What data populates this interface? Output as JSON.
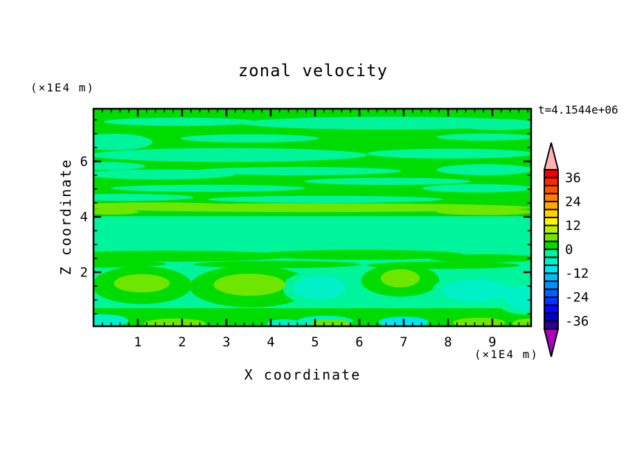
{
  "title": "zonal velocity",
  "annotations": {
    "time": "t=4.1544e+06"
  },
  "axes": {
    "x": {
      "label": "X coordinate",
      "unit": "(×1E4 m)",
      "min": 0,
      "max": 9.88,
      "major_ticks": [
        1,
        2,
        3,
        4,
        5,
        6,
        7,
        8,
        9
      ],
      "minor_step": 0.2
    },
    "z": {
      "label": "Z coordinate",
      "unit": "(×1E4 m)",
      "min": 0.05,
      "max": 7.9,
      "major_ticks": [
        2,
        4,
        6
      ],
      "minor_step": 0.5
    }
  },
  "colorbar": {
    "tick_labels": [
      36,
      24,
      12,
      0,
      -12,
      -24,
      -36
    ],
    "level_min": -40,
    "level_max": 40,
    "interval": 4,
    "box_colors_top_to_bottom": [
      "#f00000",
      "#ff2600",
      "#ff5200",
      "#ff7e00",
      "#ffaa00",
      "#ffd300",
      "#fff900",
      "#b9f000",
      "#6fe600",
      "#00db00",
      "#00f49c",
      "#00f0c8",
      "#00e4f0",
      "#00bdf2",
      "#0090ff",
      "#0061ff",
      "#0033ff",
      "#0008ff",
      "#0000c4",
      "#2e0096"
    ],
    "over_arrow_color": "#ffb3b3",
    "under_arrow_color": "#aa00bb"
  },
  "chart_data": {
    "type": "filled_contour",
    "title": "zonal velocity",
    "xlabel": "X coordinate (×1E4 m)",
    "ylabel": "Z coordinate (×1E4 m)",
    "time_annotation": "t=4.1544e+06",
    "x_range": [
      0,
      9.88
    ],
    "z_range": [
      0.05,
      7.9
    ],
    "contour_levels": [
      -40,
      -36,
      -32,
      -28,
      -24,
      -20,
      -16,
      -12,
      -8,
      -4,
      0,
      4,
      8,
      12,
      16,
      20,
      24,
      28,
      32,
      36,
      40
    ],
    "legend_position": "right-colorbar",
    "grid": false,
    "field_features": [
      {
        "shape": "rect",
        "x": [
          0,
          9.88
        ],
        "z": [
          0.05,
          7.9
        ],
        "band": [
          -4,
          0
        ]
      },
      {
        "shape": "rect",
        "x": [
          0,
          9.88
        ],
        "z": [
          4.02,
          7.9
        ],
        "band": [
          0,
          4
        ]
      },
      {
        "shape": "ellipse",
        "cx": 6.64,
        "cz": 7.38,
        "rx": 3.28,
        "rz": 0.23,
        "band": [
          -4,
          0
        ]
      },
      {
        "shape": "ellipse",
        "cx": 1.95,
        "cz": 7.43,
        "rx": 1.72,
        "rz": 0.15,
        "band": [
          -4,
          0
        ]
      },
      {
        "shape": "ellipse",
        "cx": 9.14,
        "cz": 7.33,
        "rx": 0.94,
        "rz": 0.2,
        "band": [
          -4,
          0
        ]
      },
      {
        "shape": "ellipse",
        "cx": 0.47,
        "cz": 6.7,
        "rx": 0.86,
        "rz": 0.3,
        "band": [
          -4,
          0
        ]
      },
      {
        "shape": "ellipse",
        "cx": 3.52,
        "cz": 6.83,
        "rx": 1.56,
        "rz": 0.15,
        "band": [
          -4,
          0
        ]
      },
      {
        "shape": "ellipse",
        "cx": 8.83,
        "cz": 6.88,
        "rx": 1.09,
        "rz": 0.13,
        "band": [
          -4,
          0
        ]
      },
      {
        "shape": "ellipse",
        "cx": 3.05,
        "cz": 6.23,
        "rx": 3.13,
        "rz": 0.25,
        "band": [
          -4,
          0
        ]
      },
      {
        "shape": "ellipse",
        "cx": 8.05,
        "cz": 6.28,
        "rx": 1.88,
        "rz": 0.18,
        "band": [
          -4,
          0
        ]
      },
      {
        "shape": "ellipse",
        "cx": 0.23,
        "cz": 5.83,
        "rx": 0.94,
        "rz": 0.15,
        "band": [
          -4,
          0
        ]
      },
      {
        "shape": "ellipse",
        "cx": 4.61,
        "cz": 5.65,
        "rx": 2.34,
        "rz": 0.15,
        "band": [
          -4,
          0
        ]
      },
      {
        "shape": "ellipse",
        "cx": 8.83,
        "cz": 5.7,
        "rx": 1.09,
        "rz": 0.2,
        "band": [
          -4,
          0
        ]
      },
      {
        "shape": "ellipse",
        "cx": 1.48,
        "cz": 5.53,
        "rx": 1.72,
        "rz": 0.18,
        "band": [
          -4,
          0
        ]
      },
      {
        "shape": "ellipse",
        "cx": 6.64,
        "cz": 5.28,
        "rx": 1.88,
        "rz": 0.13,
        "band": [
          -4,
          0
        ]
      },
      {
        "shape": "ellipse",
        "cx": 2.58,
        "cz": 5.03,
        "rx": 2.19,
        "rz": 0.13,
        "band": [
          -4,
          0
        ]
      },
      {
        "shape": "ellipse",
        "cx": 8.67,
        "cz": 5.03,
        "rx": 1.25,
        "rz": 0.15,
        "band": [
          -4,
          0
        ]
      },
      {
        "shape": "ellipse",
        "cx": 0.7,
        "cz": 4.7,
        "rx": 1.56,
        "rz": 0.13,
        "band": [
          -4,
          0
        ]
      },
      {
        "shape": "ellipse",
        "cx": 5.23,
        "cz": 4.63,
        "rx": 2.66,
        "rz": 0.13,
        "band": [
          -4,
          0
        ]
      },
      {
        "shape": "ellipse",
        "cx": 4.92,
        "cz": 4.33,
        "rx": 5.0,
        "rz": 0.16,
        "band": [
          4,
          8
        ]
      },
      {
        "shape": "ellipse",
        "cx": 1.33,
        "cz": 4.4,
        "rx": 1.88,
        "rz": 0.12,
        "band": [
          4,
          8
        ]
      },
      {
        "shape": "ellipse",
        "cx": 8.83,
        "cz": 4.18,
        "rx": 1.09,
        "rz": 0.12,
        "band": [
          4,
          8
        ]
      },
      {
        "shape": "ellipse",
        "cx": 0.39,
        "cz": 4.18,
        "rx": 0.63,
        "rz": 0.1,
        "band": [
          4,
          8
        ]
      },
      {
        "shape": "ellipse",
        "cx": 1.64,
        "cz": 2.58,
        "rx": 2.81,
        "rz": 0.2,
        "band": [
          0,
          4
        ]
      },
      {
        "shape": "ellipse",
        "cx": 6.02,
        "cz": 2.63,
        "rx": 2.34,
        "rz": 0.18,
        "band": [
          0,
          4
        ]
      },
      {
        "shape": "ellipse",
        "cx": 8.83,
        "cz": 2.5,
        "rx": 1.25,
        "rz": 0.15,
        "band": [
          0,
          4
        ]
      },
      {
        "shape": "ellipse",
        "cx": 0.23,
        "cz": 2.3,
        "rx": 1.41,
        "rz": 0.13,
        "band": [
          0,
          4
        ]
      },
      {
        "shape": "ellipse",
        "cx": 4.14,
        "cz": 2.28,
        "rx": 1.88,
        "rz": 0.13,
        "band": [
          0,
          4
        ]
      },
      {
        "shape": "ellipse",
        "cx": 7.89,
        "cz": 2.25,
        "rx": 1.72,
        "rz": 0.13,
        "band": [
          0,
          4
        ]
      },
      {
        "shape": "ellipse",
        "cx": 1.09,
        "cz": 1.53,
        "rx": 1.13,
        "rz": 0.68,
        "band": [
          0,
          4
        ]
      },
      {
        "shape": "ellipse",
        "cx": 3.55,
        "cz": 1.48,
        "rx": 1.38,
        "rz": 0.75,
        "band": [
          0,
          4
        ]
      },
      {
        "shape": "ellipse",
        "cx": 6.92,
        "cz": 1.7,
        "rx": 0.88,
        "rz": 0.58,
        "band": [
          0,
          4
        ]
      },
      {
        "shape": "rect",
        "x": [
          0,
          9.88
        ],
        "z": [
          0.05,
          0.7
        ],
        "band": [
          0,
          4
        ]
      },
      {
        "shape": "ellipse",
        "cx": 5.11,
        "cz": 1.43,
        "rx": 0.84,
        "rz": 0.63,
        "band": [
          -4,
          0
        ]
      },
      {
        "shape": "ellipse",
        "cx": 8.64,
        "cz": 1.33,
        "rx": 1.0,
        "rz": 0.58,
        "band": [
          -4,
          0
        ]
      },
      {
        "shape": "ellipse",
        "cx": 9.72,
        "cz": 1.1,
        "rx": 0.69,
        "rz": 0.63,
        "band": [
          -4,
          0
        ]
      },
      {
        "shape": "ellipse",
        "cx": 5.11,
        "cz": 1.43,
        "rx": 0.59,
        "rz": 0.43,
        "band": [
          -8,
          -4
        ]
      },
      {
        "shape": "ellipse",
        "cx": 8.64,
        "cz": 1.33,
        "rx": 0.77,
        "rz": 0.4,
        "band": [
          -8,
          -4
        ]
      },
      {
        "shape": "ellipse",
        "cx": 9.72,
        "cz": 1.1,
        "rx": 0.45,
        "rz": 0.43,
        "band": [
          -8,
          -4
        ]
      },
      {
        "shape": "ellipse",
        "cx": 0.2,
        "cz": 0.25,
        "rx": 0.59,
        "rz": 0.23,
        "band": [
          -8,
          -4
        ]
      },
      {
        "shape": "ellipse",
        "cx": 4.3,
        "cz": 0.15,
        "rx": 0.39,
        "rz": 0.15,
        "band": [
          -8,
          -4
        ]
      },
      {
        "shape": "ellipse",
        "cx": 5.23,
        "cz": 0.23,
        "rx": 0.63,
        "rz": 0.2,
        "band": [
          -8,
          -4
        ]
      },
      {
        "shape": "ellipse",
        "cx": 7.0,
        "cz": 0.2,
        "rx": 0.56,
        "rz": 0.2,
        "band": [
          -12,
          -8
        ]
      },
      {
        "shape": "ellipse",
        "cx": 1.09,
        "cz": 1.6,
        "rx": 0.63,
        "rz": 0.33,
        "band": [
          4,
          8
        ]
      },
      {
        "shape": "ellipse",
        "cx": 3.52,
        "cz": 1.55,
        "rx": 0.81,
        "rz": 0.4,
        "band": [
          4,
          8
        ]
      },
      {
        "shape": "ellipse",
        "cx": 6.92,
        "cz": 1.78,
        "rx": 0.44,
        "rz": 0.33,
        "band": [
          4,
          8
        ]
      },
      {
        "shape": "ellipse",
        "cx": 1.84,
        "cz": 0.15,
        "rx": 0.7,
        "rz": 0.18,
        "band": [
          4,
          8
        ]
      },
      {
        "shape": "ellipse",
        "cx": 5.36,
        "cz": 0.15,
        "rx": 0.47,
        "rz": 0.15,
        "band": [
          4,
          8
        ]
      },
      {
        "shape": "ellipse",
        "cx": 8.7,
        "cz": 0.18,
        "rx": 0.59,
        "rz": 0.18,
        "band": [
          4,
          8
        ]
      },
      {
        "shape": "ellipse",
        "cx": 9.84,
        "cz": 0.15,
        "rx": 0.39,
        "rz": 0.18,
        "band": [
          4,
          8
        ]
      }
    ]
  }
}
